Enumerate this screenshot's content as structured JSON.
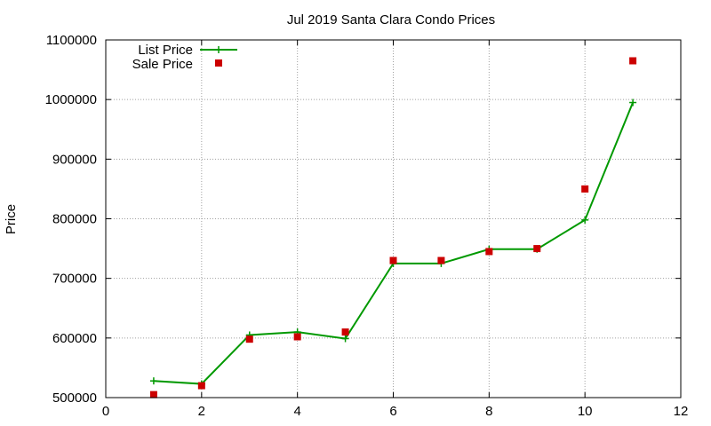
{
  "chart_data": {
    "type": "line",
    "title": "Jul 2019 Santa Clara Condo Prices",
    "xlabel": "",
    "ylabel": "Price",
    "xlim": [
      0,
      12
    ],
    "ylim": [
      500000,
      1100000
    ],
    "x_ticks": [
      0,
      2,
      4,
      6,
      8,
      10,
      12
    ],
    "y_ticks": [
      500000,
      600000,
      700000,
      800000,
      900000,
      1000000,
      1100000
    ],
    "grid": true,
    "legend_position": "top-left",
    "series": [
      {
        "name": "List Price",
        "style": "line-with-plus-markers",
        "color": "#009900",
        "x": [
          1,
          2,
          3,
          4,
          5,
          6,
          7,
          8,
          9,
          10,
          11
        ],
        "values": [
          528000,
          523000,
          605000,
          610000,
          599000,
          725000,
          725000,
          749000,
          749000,
          798000,
          995000
        ]
      },
      {
        "name": "Sale Price",
        "style": "square-points",
        "color": "#cc0000",
        "x": [
          1,
          2,
          3,
          4,
          5,
          6,
          7,
          8,
          9,
          10,
          11
        ],
        "values": [
          505000,
          520000,
          598000,
          602000,
          610000,
          730000,
          730000,
          745000,
          750000,
          850000,
          1065000
        ]
      }
    ]
  }
}
